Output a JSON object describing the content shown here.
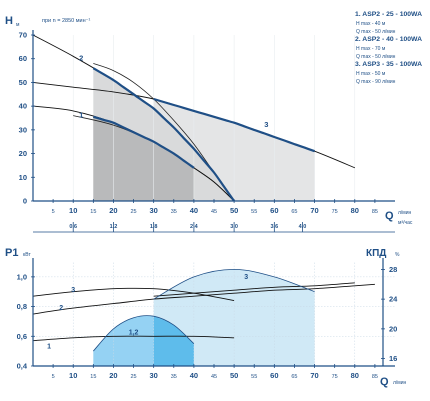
{
  "chart_data": [
    {
      "type": "line",
      "title": "",
      "ylabel": "H",
      "ylabel_unit": "м",
      "rpm_note": "при n = 2850 мин⁻¹",
      "xlabel": "Q",
      "xlabel_units": [
        "л/мин",
        "м³/час"
      ],
      "xlim": [
        0,
        90
      ],
      "ylim": [
        0,
        70
      ],
      "x_ticks": [
        "5",
        "10",
        "15",
        "20",
        "25",
        "30",
        "35",
        "40",
        "45",
        "50",
        "55",
        "60",
        "65",
        "70",
        "75",
        "80",
        "85"
      ],
      "x_ticks_m3": [
        "0.6",
        "1.2",
        "1.8",
        "2.4",
        "3.0",
        "3.6",
        "4.0"
      ],
      "y_ticks": [
        "0",
        "10",
        "20",
        "30",
        "40",
        "50",
        "60",
        "70"
      ],
      "legend": [
        {
          "title": "1. ASP2 - 25 - 100WA",
          "hmax": "H max - 40 м",
          "qmax": "Q max - 50 л/мин"
        },
        {
          "title": "2. ASP2 - 40 - 100WA",
          "hmax": "H max - 70 м",
          "qmax": "Q max - 50 л/мин"
        },
        {
          "title": "3. ASP3 - 35 - 100WA",
          "hmax": "H max - 50 м",
          "qmax": "Q max - 90 л/мин"
        }
      ],
      "series": [
        {
          "name": "1",
          "x": [
            0,
            10,
            20,
            30,
            35,
            40,
            45,
            50
          ],
          "y": [
            40,
            38,
            33,
            25,
            20,
            14,
            8,
            0
          ]
        },
        {
          "name": "2",
          "x": [
            0,
            10,
            20,
            30,
            35,
            40,
            45,
            50
          ],
          "y": [
            70,
            61,
            51,
            39,
            31,
            22,
            12,
            0
          ]
        },
        {
          "name": "3",
          "x": [
            0,
            10,
            20,
            30,
            40,
            50,
            60,
            70,
            80
          ],
          "y": [
            50,
            48,
            46,
            43,
            38,
            33,
            27,
            21,
            14
          ]
        }
      ],
      "extension_curves": [
        {
          "x": [
            15,
            20,
            25,
            30,
            35,
            40,
            45,
            50
          ],
          "y": [
            58,
            55,
            50,
            43,
            34,
            24,
            12,
            0
          ]
        },
        {
          "x": [
            10,
            20,
            30,
            35,
            40,
            45,
            50
          ],
          "y": [
            36,
            32,
            25,
            20,
            14,
            8,
            0
          ]
        }
      ],
      "operating_ranges": [
        {
          "series": "1",
          "x": [
            15,
            40
          ]
        },
        {
          "series": "2",
          "x": [
            15,
            50
          ]
        },
        {
          "series": "3",
          "x": [
            30,
            70
          ]
        }
      ]
    },
    {
      "type": "line",
      "ylabel_left": "P1",
      "ylabel_left_unit": "кВт",
      "ylabel_right": "КПД",
      "ylabel_right_unit": "%",
      "xlabel": "Q",
      "xlabel_unit": "л/мин",
      "xlim": [
        0,
        90
      ],
      "ylim_left": [
        0.4,
        1.1
      ],
      "ylim_right": [
        15,
        29
      ],
      "x_ticks": [
        "5",
        "10",
        "15",
        "20",
        "25",
        "30",
        "35",
        "40",
        "45",
        "50",
        "55",
        "60",
        "65",
        "70",
        "75",
        "80",
        "85"
      ],
      "y_ticks_left": [
        "0,4",
        "0,6",
        "0,8",
        "1,0"
      ],
      "y_ticks_right": [
        "16",
        "20",
        "24",
        "28"
      ],
      "power_series": [
        {
          "name": "1",
          "x": [
            0,
            10,
            20,
            30,
            40,
            50
          ],
          "y": [
            0.57,
            0.59,
            0.6,
            0.6,
            0.6,
            0.59
          ]
        },
        {
          "name": "2",
          "x": [
            0,
            10,
            20,
            30,
            40,
            50,
            60,
            70,
            80,
            85
          ],
          "y": [
            0.75,
            0.79,
            0.82,
            0.85,
            0.87,
            0.89,
            0.91,
            0.92,
            0.94,
            0.95
          ]
        },
        {
          "name": "3",
          "x": [
            0,
            10,
            20,
            30,
            40,
            50
          ],
          "y": [
            0.87,
            0.9,
            0.92,
            0.92,
            0.89,
            0.84
          ]
        },
        {
          "name": "",
          "x": [
            30,
            40,
            50,
            60,
            70,
            80
          ],
          "y": [
            0.87,
            0.89,
            0.91,
            0.93,
            0.94,
            0.96
          ]
        }
      ],
      "efficiency_series": [
        {
          "name": "1,2",
          "x": [
            15,
            20,
            25,
            30,
            35,
            40
          ],
          "y": [
            17,
            20,
            21.5,
            21.7,
            20.5,
            18
          ]
        },
        {
          "name": "3",
          "x": [
            30,
            40,
            50,
            60,
            70
          ],
          "y": [
            24,
            27,
            28,
            27,
            25
          ]
        }
      ],
      "colors": {
        "curve": "#1f4f86",
        "fill_light": "#cde8f6",
        "fill_mid": "#8fd0f2",
        "fill_dark": "#59b9ea",
        "gray_dark": "#b9babb",
        "gray_light": "#e4e5e6"
      }
    }
  ]
}
